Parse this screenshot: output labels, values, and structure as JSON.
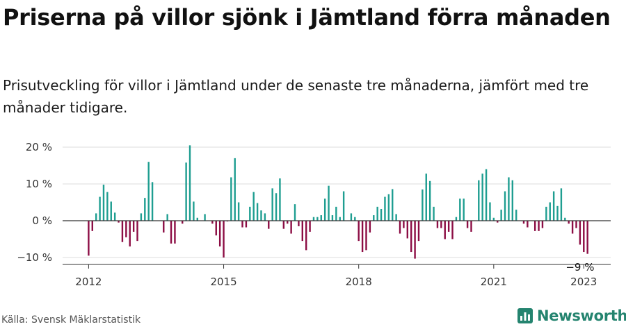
{
  "title": "Priserna på villor sjönk i Jämtland förra månaden",
  "subtitle": "Prisutveckling för villor i Jämtland under de senaste tre månaderna, jämfört med tre månader tidigare.",
  "source": "Källa: Svensk Mäklarstatistik",
  "brand": {
    "name": "Newsworthy",
    "color": "#24846f"
  },
  "colors": {
    "positive": "#1f9e91",
    "negative": "#8c0d44",
    "grid": "#dddddd",
    "zero_line": "#333333"
  },
  "chart_data": {
    "type": "bar",
    "x_unit": "month",
    "x_start": "2012-01",
    "x_ticks": [
      "2012",
      "2015",
      "2018",
      "2021",
      "2023"
    ],
    "y_ticks": [
      "20 %",
      "10 %",
      "0 %",
      "−10 %"
    ],
    "ylim": [
      -12,
      22
    ],
    "grid": true,
    "annotation": {
      "label": "−9 %",
      "x": "2022-12",
      "value": -9
    },
    "values": [
      -9.5,
      -2.8,
      2,
      6.5,
      9.8,
      7.8,
      5.2,
      2.2,
      -0.5,
      -5.8,
      -4.5,
      -7,
      -3,
      -5.5,
      2,
      6.2,
      16,
      10.5,
      0,
      0,
      -3.2,
      1.8,
      -6.2,
      -6.2,
      0,
      -0.8,
      15.8,
      20.5,
      5.2,
      0.8,
      0,
      1.8,
      0,
      -0.8,
      -4,
      -7,
      -10,
      -0.2,
      11.8,
      17,
      5,
      -1.8,
      -1.8,
      3.8,
      7.8,
      4.8,
      2.8,
      2,
      -2.2,
      8.8,
      7.5,
      11.5,
      -2.2,
      -0.8,
      -3.5,
      4.5,
      -1.5,
      -5.5,
      -8,
      -3,
      1,
      1,
      1.5,
      6,
      9.5,
      1.5,
      3.8,
      1,
      8,
      0,
      2,
      1,
      -5.5,
      -8.5,
      -8,
      -3.2,
      1.5,
      3.8,
      3.2,
      6.5,
      7.2,
      8.6,
      1.8,
      -3.5,
      -2,
      -4.8,
      -8.5,
      -10.3,
      -5.5,
      8.5,
      12.8,
      10.8,
      3.8,
      -2,
      -2,
      -5,
      -3,
      -5,
      1,
      6,
      6,
      -2,
      -3,
      0,
      11,
      12.8,
      14,
      5,
      0.8,
      -0.5,
      3,
      8,
      11.8,
      11,
      3,
      0,
      -0.8,
      -1.8,
      0,
      -2.8,
      -2.8,
      -2,
      3.8,
      5,
      8,
      4,
      8.8,
      0.8,
      -0.8,
      -3.5,
      -2,
      -6.5,
      -8.5,
      -9
    ]
  }
}
